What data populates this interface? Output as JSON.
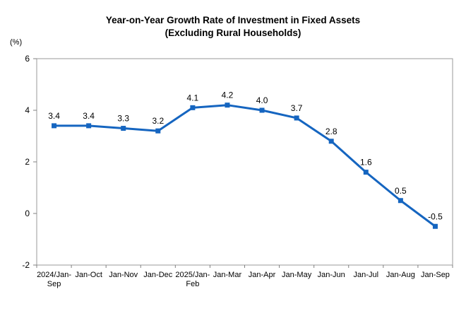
{
  "header": {
    "title_line1": "Year-on-Year Growth Rate of Investment in Fixed Assets",
    "title_line2": "(Excluding Rural Households)"
  },
  "chart_data": {
    "type": "line",
    "title": "Year-on-Year Growth Rate of Investment in Fixed Assets (Excluding Rural Households)",
    "unit_label": "(%)",
    "xlabel": "",
    "ylabel": "(%)",
    "categories": [
      "2024/Jan-\nSep",
      "Jan-Oct",
      "Jan-Nov",
      "Jan-Dec",
      "2025/Jan-\nFeb",
      "Jan-Mar",
      "Jan-Apr",
      "Jan-May",
      "Jan-Jun",
      "Jan-Jul",
      "Jan-Aug",
      "Jan-Sep"
    ],
    "values": [
      3.4,
      3.4,
      3.3,
      3.2,
      4.1,
      4.2,
      4.0,
      3.7,
      2.8,
      1.6,
      0.5,
      -0.5
    ],
    "point_labels": [
      "3.4",
      "3.4",
      "3.3",
      "3.2",
      "4.1",
      "4.2",
      "4.0",
      "3.7",
      "2.8",
      "1.6",
      "0.5",
      "-0.5"
    ],
    "ylim": [
      -2,
      6
    ],
    "yticks": [
      -2,
      0,
      2,
      4,
      6
    ],
    "grid": false,
    "legend": "none",
    "colors": {
      "line": "#1565C0",
      "marker": "#1565C0",
      "axis": "#999999",
      "tick": "#808080",
      "text": "#000000"
    }
  }
}
